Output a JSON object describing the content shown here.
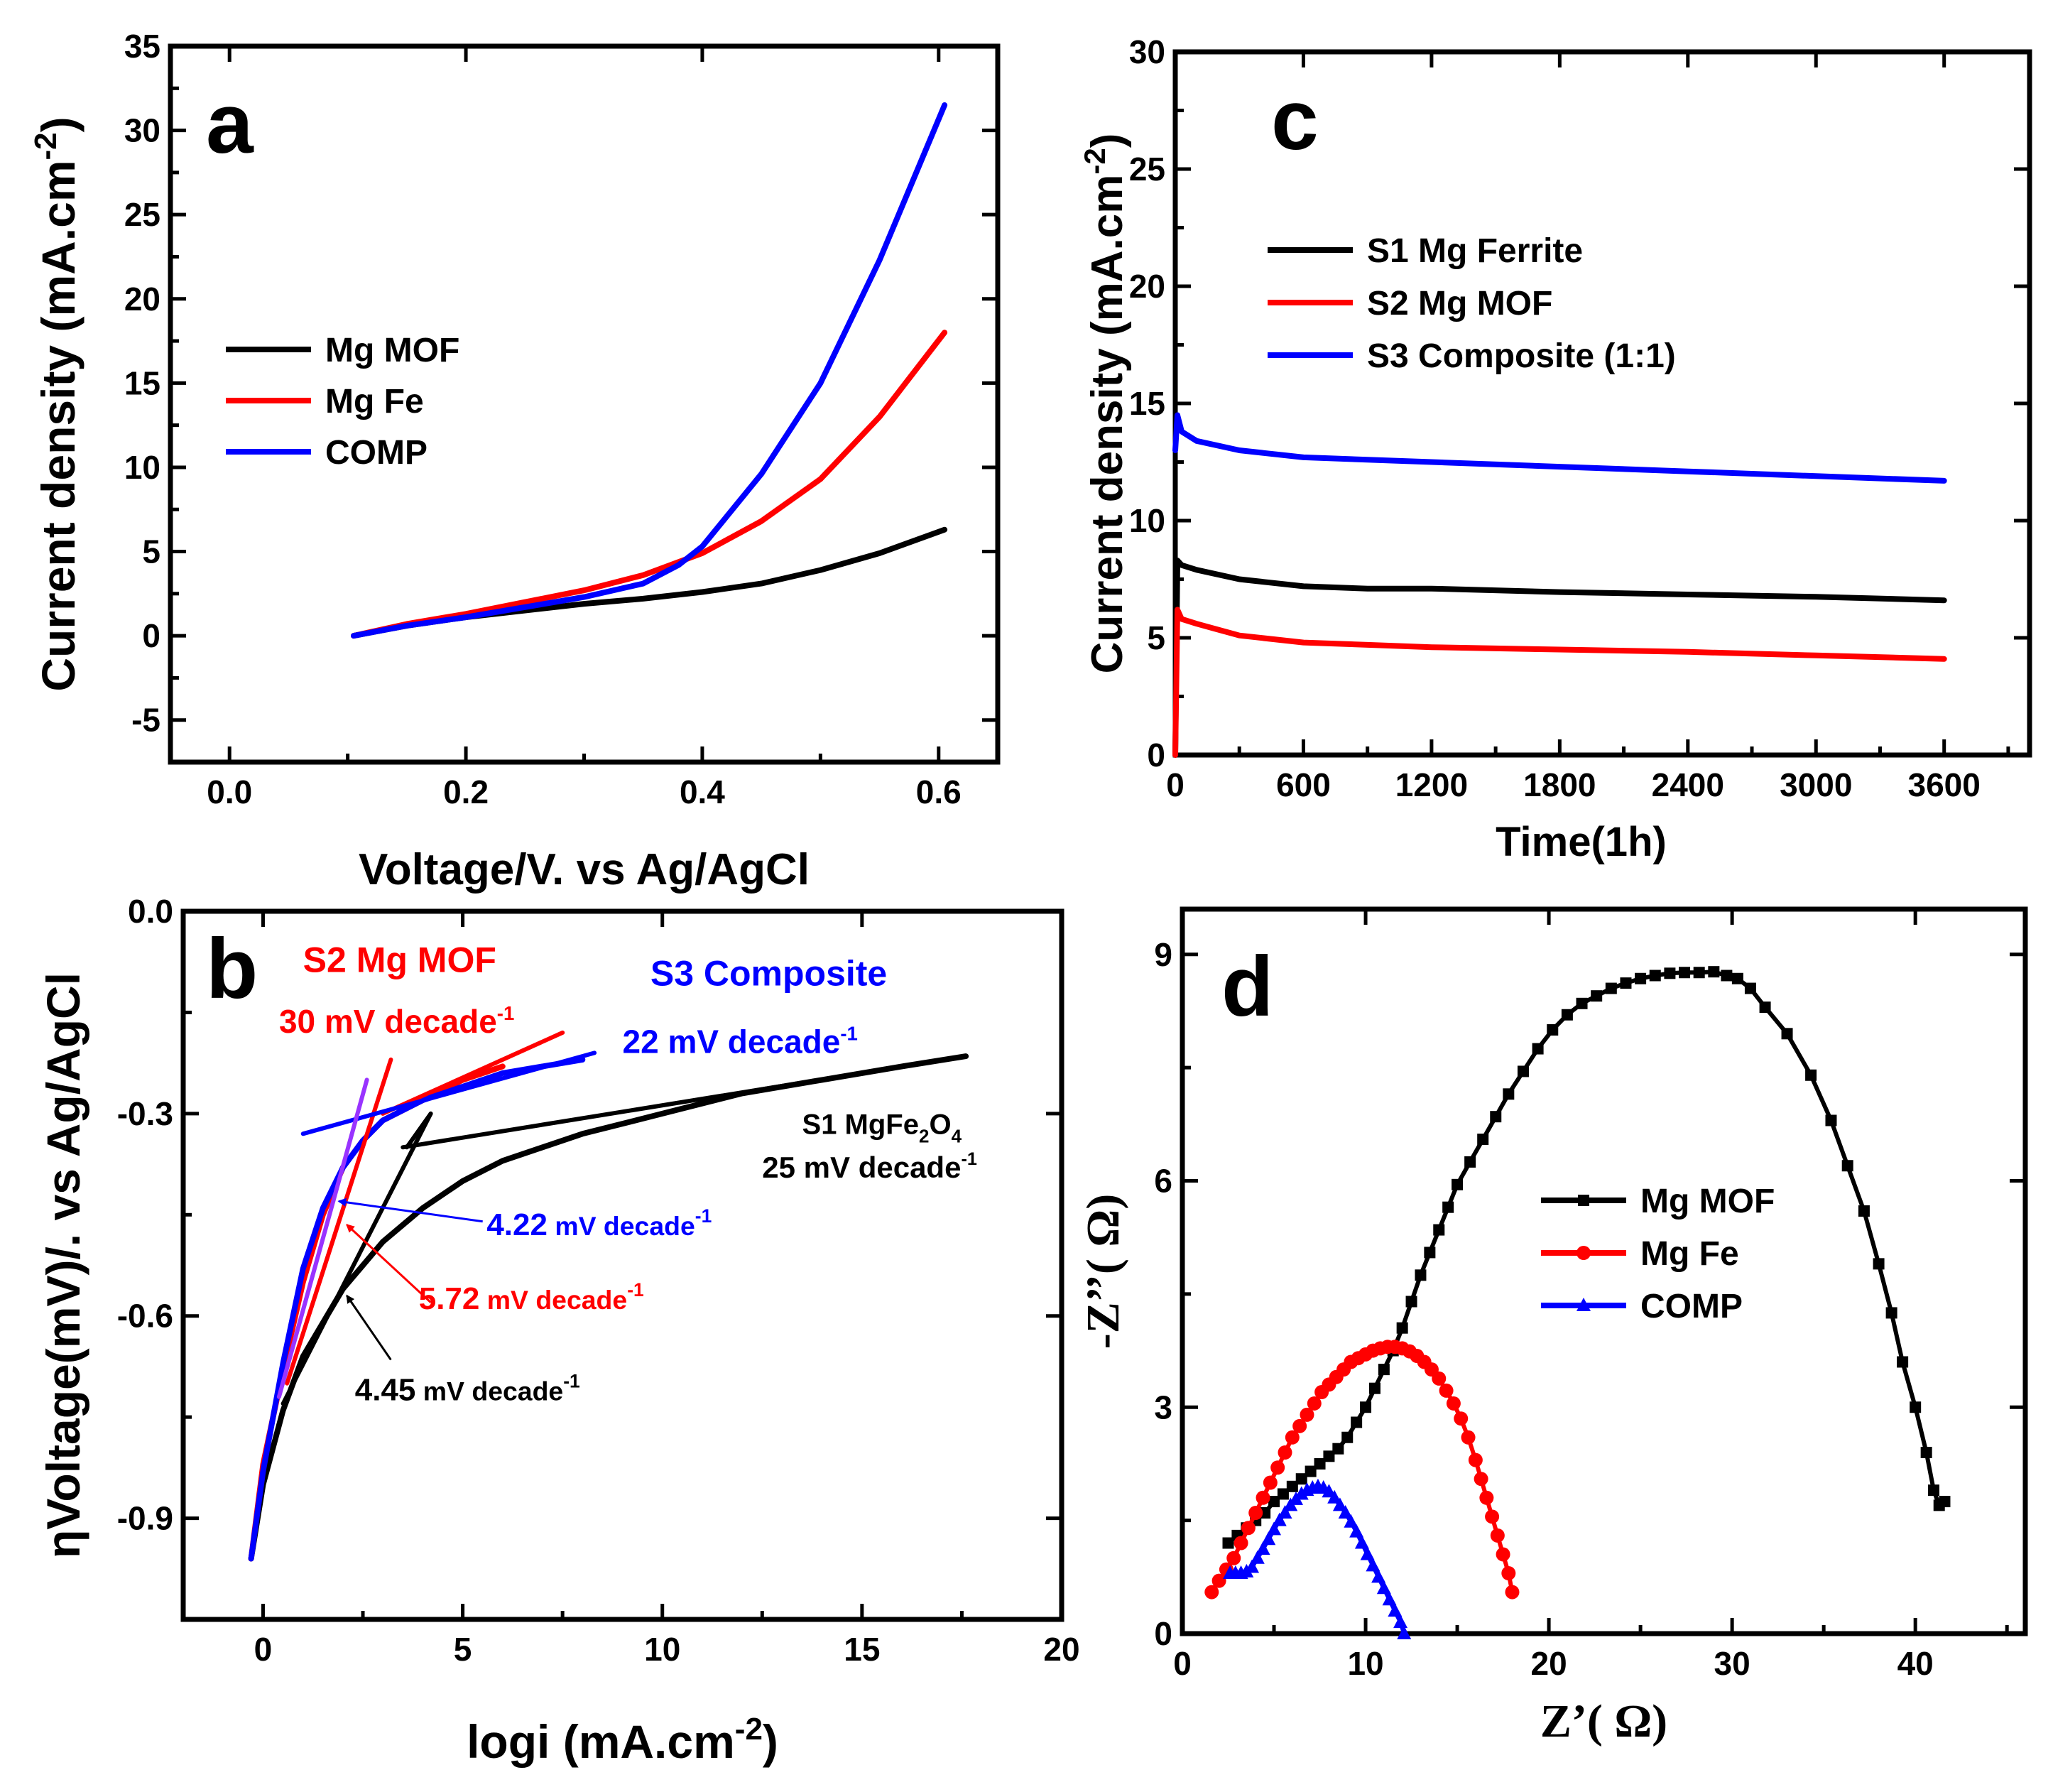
{
  "colors": {
    "black": "#000000",
    "red": "#ff0000",
    "blue": "#0000ff",
    "purple": "#9933ff"
  },
  "chart_data": [
    {
      "panel": "a",
      "type": "line",
      "xlabel": "Voltage/V. vs Ag/AgCl",
      "ylabel": "Current density (mA.cm",
      "ylabel_sup": "-2",
      "ylabel_end": ")",
      "xlim": [
        -0.05,
        0.65
      ],
      "ylim": [
        -7.5,
        35
      ],
      "xticks": [
        0.0,
        0.2,
        0.4,
        0.6
      ],
      "xticklabels": [
        "0.0",
        "0.2",
        "0.4",
        "0.6"
      ],
      "yticks": [
        -5,
        0,
        5,
        10,
        15,
        20,
        25,
        30,
        35
      ],
      "yticklabels": [
        "-5",
        "0",
        "5",
        "10",
        "15",
        "20",
        "25",
        "30",
        "35"
      ],
      "legend_position": "center-left",
      "series": [
        {
          "name": "Mg MOF",
          "color": "#000000",
          "x": [
            0.105,
            0.15,
            0.2,
            0.25,
            0.3,
            0.35,
            0.4,
            0.45,
            0.5,
            0.55,
            0.605
          ],
          "y": [
            0,
            0.6,
            1.1,
            1.5,
            1.9,
            2.2,
            2.6,
            3.1,
            3.9,
            4.9,
            6.3
          ]
        },
        {
          "name": "Mg Fe",
          "color": "#ff0000",
          "x": [
            0.105,
            0.15,
            0.2,
            0.25,
            0.3,
            0.35,
            0.4,
            0.45,
            0.5,
            0.55,
            0.605
          ],
          "y": [
            0,
            0.7,
            1.3,
            2.0,
            2.7,
            3.6,
            4.9,
            6.8,
            9.3,
            13.0,
            18.0
          ]
        },
        {
          "name": "COMP",
          "color": "#0000ff",
          "x": [
            0.105,
            0.15,
            0.2,
            0.25,
            0.3,
            0.35,
            0.38,
            0.4,
            0.45,
            0.5,
            0.55,
            0.605
          ],
          "y": [
            0,
            0.6,
            1.1,
            1.7,
            2.3,
            3.1,
            4.2,
            5.3,
            9.6,
            15.0,
            22.3,
            31.5
          ]
        }
      ]
    },
    {
      "panel": "b",
      "type": "line",
      "xlabel": "logi (mA.cm",
      "xlabel_sup": "-2",
      "xlabel_end": ")",
      "ylabel": "ηVoltage(mV)/. vs Ag/AgCl",
      "xlim": [
        -2,
        20
      ],
      "ylim": [
        -1.05,
        0
      ],
      "xticks": [
        0,
        5,
        10,
        15,
        20
      ],
      "xticklabels": [
        "0",
        "5",
        "10",
        "15",
        "20"
      ],
      "yticks": [
        0.0,
        -0.3,
        -0.6,
        -0.9
      ],
      "yticklabels": [
        "0.0",
        "-0.3",
        "-0.6",
        "-0.9"
      ],
      "series": [
        {
          "name": "S1",
          "color": "#000000",
          "x": [
            -0.3,
            0.0,
            0.5,
            1.0,
            2.0,
            3.0,
            4.0,
            5.0,
            6.0,
            8.0,
            10.0,
            12.0,
            14.0,
            16.0,
            17.6
          ],
          "y": [
            -0.96,
            -0.85,
            -0.74,
            -0.66,
            -0.56,
            -0.49,
            -0.44,
            -0.4,
            -0.37,
            -0.33,
            -0.3,
            -0.27,
            -0.25,
            -0.23,
            -0.215
          ]
        },
        {
          "name": "S2",
          "color": "#ff0000",
          "x": [
            -0.3,
            0.0,
            0.5,
            1.0,
            1.5,
            2.0,
            2.5,
            3.0,
            4.0,
            5.0,
            6.0
          ],
          "y": [
            -0.96,
            -0.82,
            -0.68,
            -0.55,
            -0.45,
            -0.38,
            -0.34,
            -0.31,
            -0.28,
            -0.25,
            -0.23
          ]
        },
        {
          "name": "S3",
          "color": "#0000ff",
          "x": [
            -0.3,
            0.0,
            0.5,
            1.0,
            1.5,
            2.0,
            2.5,
            3.0,
            4.0,
            5.0,
            6.0,
            7.0,
            8.0
          ],
          "y": [
            -0.96,
            -0.83,
            -0.67,
            -0.53,
            -0.44,
            -0.38,
            -0.34,
            -0.31,
            -0.28,
            -0.26,
            -0.24,
            -0.23,
            -0.22
          ]
        }
      ],
      "fit_lines": [
        {
          "color": "#000000",
          "x": [
            3.6,
            4.2
          ],
          "y": [
            -0.35,
            -0.3
          ]
        },
        {
          "color": "#000000",
          "x": [
            0.5,
            4.2
          ],
          "y": [
            -0.73,
            -0.3
          ]
        },
        {
          "color": "#000000",
          "x": [
            3.5,
            17.6
          ],
          "y": [
            -0.35,
            -0.215
          ]
        },
        {
          "color": "#ff0000",
          "x": [
            0.6,
            3.2
          ],
          "y": [
            -0.7,
            -0.22
          ]
        },
        {
          "color": "#ff0000",
          "x": [
            3.0,
            7.5
          ],
          "y": [
            -0.3,
            -0.18
          ]
        },
        {
          "color": "#0000ff",
          "x": [
            1.0,
            8.3
          ],
          "y": [
            -0.33,
            -0.21
          ]
        },
        {
          "color": "#9933ff",
          "x": [
            0.4,
            2.6
          ],
          "y": [
            -0.72,
            -0.25
          ]
        }
      ],
      "annotations": [
        {
          "text": "S2 Mg MOF",
          "color": "#ff0000",
          "size": 50,
          "x": 1.0,
          "y": -0.09
        },
        {
          "text": "30 mV decade",
          "sup": "-1",
          "color": "#ff0000",
          "size": 46,
          "x": 0.4,
          "y": -0.18
        },
        {
          "text": "S3 Composite",
          "color": "#0000ff",
          "size": 50,
          "x": 9.7,
          "y": -0.11
        },
        {
          "text": "22 mV decade",
          "sup": "-1",
          "color": "#0000ff",
          "size": 46,
          "x": 9.0,
          "y": -0.21
        },
        {
          "text": "S1 MgFe",
          "sub1": "2",
          "mid": "O",
          "sub2": "4",
          "color": "#000000",
          "size": 40,
          "x": 13.5,
          "y": -0.33
        },
        {
          "text": "25 mV decade",
          "sup": "-1",
          "color": "#000000",
          "size": 42,
          "x": 12.5,
          "y": -0.395
        },
        {
          "text": "4.22",
          "rest": " mV decade",
          "sup": "-1",
          "color": "#0000ff",
          "size": 44,
          "x": 5.6,
          "y": -0.48
        },
        {
          "text": "5.72",
          "rest": " mV decade",
          "sup": "-1",
          "color": "#ff0000",
          "size": 44,
          "x": 3.9,
          "y": -0.59
        },
        {
          "text": "4.45",
          "rest": " mV decade",
          "sup": "-1",
          "color": "#000000",
          "size": 44,
          "x": 2.3,
          "y": -0.725
        }
      ],
      "arrows": [
        {
          "color": "#0000ff",
          "x": [
            5.5,
            1.9
          ],
          "y": [
            -0.46,
            -0.43
          ]
        },
        {
          "color": "#ff0000",
          "x": [
            4.2,
            2.1
          ],
          "y": [
            -0.58,
            -0.465
          ]
        },
        {
          "color": "#000000",
          "x": [
            3.2,
            2.1
          ],
          "y": [
            -0.665,
            -0.57
          ]
        }
      ]
    },
    {
      "panel": "c",
      "type": "line",
      "xlabel": "Time(1h)",
      "ylabel": "Current density (mA.cm",
      "ylabel_sup": "-2",
      "ylabel_end": ")",
      "xlim": [
        0,
        4000
      ],
      "ylim": [
        0,
        30
      ],
      "xticks": [
        0,
        600,
        1200,
        1800,
        2400,
        3000,
        3600
      ],
      "xticklabels": [
        "0",
        "600",
        "1200",
        "1800",
        "2400",
        "3000",
        "3600"
      ],
      "yticks": [
        0,
        5,
        10,
        15,
        20,
        25,
        30
      ],
      "yticklabels": [
        "0",
        "5",
        "10",
        "15",
        "20",
        "25",
        "30"
      ],
      "legend_position": "upper-left",
      "series": [
        {
          "name": "S1 Mg Ferrite",
          "color": "#000000",
          "x": [
            0,
            10,
            30,
            100,
            300,
            600,
            900,
            1200,
            1800,
            2400,
            3000,
            3600
          ],
          "y": [
            0,
            8.3,
            8.1,
            7.9,
            7.5,
            7.2,
            7.1,
            7.1,
            6.95,
            6.85,
            6.75,
            6.6
          ]
        },
        {
          "name": "S2 Mg MOF",
          "color": "#ff0000",
          "x": [
            0,
            10,
            30,
            100,
            300,
            600,
            900,
            1200,
            1800,
            2400,
            3000,
            3600
          ],
          "y": [
            0,
            6.2,
            5.8,
            5.6,
            5.1,
            4.8,
            4.7,
            4.6,
            4.5,
            4.4,
            4.25,
            4.1
          ]
        },
        {
          "name": "S3 Composite (1:1)",
          "color": "#0000ff",
          "x": [
            0,
            10,
            30,
            100,
            300,
            600,
            900,
            1200,
            1800,
            2400,
            3000,
            3600
          ],
          "y": [
            13.0,
            14.5,
            13.8,
            13.4,
            13.0,
            12.7,
            12.6,
            12.5,
            12.3,
            12.1,
            11.9,
            11.7
          ]
        }
      ]
    },
    {
      "panel": "d",
      "type": "line",
      "xlabel": "Z’( Ω)",
      "ylabel": "-Z’’( Ω)",
      "xlim": [
        0,
        46
      ],
      "ylim": [
        0,
        9.6
      ],
      "xticks": [
        0,
        10,
        20,
        30,
        40
      ],
      "xticklabels": [
        "0",
        "10",
        "20",
        "30",
        "40"
      ],
      "yticks": [
        0,
        3,
        6,
        9
      ],
      "yticklabels": [
        "0",
        "3",
        "6",
        "9"
      ],
      "legend_position": "center",
      "series": [
        {
          "name": "Mg MOF",
          "color": "#000000",
          "marker": "square",
          "x": [
            2.5,
            3.0,
            3.5,
            4.0,
            4.5,
            5.0,
            5.5,
            6.0,
            6.5,
            7.0,
            7.5,
            8.0,
            8.5,
            9.0,
            9.5,
            10.0,
            10.5,
            11.0,
            11.5,
            12.0,
            12.5,
            13.0,
            13.5,
            14.0,
            14.5,
            15.0,
            15.7,
            16.4,
            17.1,
            17.8,
            18.6,
            19.4,
            20.2,
            21.0,
            21.8,
            22.6,
            23.4,
            24.2,
            25.0,
            25.8,
            26.6,
            27.4,
            28.2,
            29.0,
            29.7,
            30.3,
            31.0,
            31.8,
            33.0,
            34.3,
            35.4,
            36.3,
            37.2,
            38.0,
            38.7,
            39.3,
            40.0,
            40.6,
            41.0,
            41.3,
            41.6
          ],
          "y": [
            1.2,
            1.3,
            1.4,
            1.5,
            1.6,
            1.75,
            1.85,
            1.95,
            2.05,
            2.15,
            2.25,
            2.35,
            2.45,
            2.6,
            2.8,
            3.0,
            3.25,
            3.5,
            3.75,
            4.05,
            4.4,
            4.75,
            5.05,
            5.35,
            5.65,
            5.95,
            6.25,
            6.55,
            6.85,
            7.15,
            7.45,
            7.75,
            8.0,
            8.2,
            8.35,
            8.45,
            8.55,
            8.62,
            8.68,
            8.72,
            8.75,
            8.76,
            8.76,
            8.77,
            8.72,
            8.68,
            8.55,
            8.3,
            7.95,
            7.4,
            6.8,
            6.2,
            5.6,
            4.9,
            4.25,
            3.6,
            3.0,
            2.4,
            1.9,
            1.7,
            1.75
          ]
        },
        {
          "name": "Mg Fe",
          "color": "#ff0000",
          "marker": "circle",
          "x": [
            1.6,
            2.0,
            2.4,
            2.8,
            3.2,
            3.6,
            4.0,
            4.4,
            4.8,
            5.2,
            5.6,
            6.0,
            6.4,
            6.8,
            7.2,
            7.6,
            8.0,
            8.4,
            8.8,
            9.2,
            9.6,
            10.0,
            10.4,
            10.8,
            11.2,
            11.6,
            12.0,
            12.4,
            12.8,
            13.2,
            13.6,
            14.0,
            14.4,
            14.8,
            15.2,
            15.6,
            16.0,
            16.3,
            16.6,
            16.9,
            17.2,
            17.5,
            17.8,
            18.0
          ],
          "y": [
            0.55,
            0.7,
            0.85,
            1.0,
            1.2,
            1.4,
            1.6,
            1.8,
            2.0,
            2.2,
            2.4,
            2.6,
            2.75,
            2.9,
            3.05,
            3.2,
            3.3,
            3.4,
            3.5,
            3.6,
            3.65,
            3.7,
            3.75,
            3.78,
            3.8,
            3.8,
            3.78,
            3.74,
            3.68,
            3.6,
            3.5,
            3.38,
            3.22,
            3.05,
            2.85,
            2.6,
            2.3,
            2.05,
            1.8,
            1.55,
            1.3,
            1.05,
            0.8,
            0.55
          ]
        },
        {
          "name": "COMP",
          "color": "#0000ff",
          "marker": "triangle",
          "x": [
            2.6,
            2.9,
            3.2,
            3.5,
            3.8,
            4.1,
            4.4,
            4.7,
            5.0,
            5.3,
            5.6,
            5.9,
            6.2,
            6.5,
            6.8,
            7.1,
            7.4,
            7.7,
            8.0,
            8.3,
            8.6,
            8.9,
            9.2,
            9.5,
            9.8,
            10.1,
            10.4,
            10.7,
            11.0,
            11.3,
            11.6,
            11.9,
            12.1
          ],
          "y": [
            0.8,
            0.8,
            0.8,
            0.82,
            0.88,
            1.0,
            1.12,
            1.25,
            1.38,
            1.5,
            1.6,
            1.7,
            1.78,
            1.85,
            1.9,
            1.93,
            1.95,
            1.93,
            1.88,
            1.8,
            1.7,
            1.6,
            1.48,
            1.35,
            1.2,
            1.05,
            0.9,
            0.75,
            0.6,
            0.45,
            0.3,
            0.15,
            0.0
          ]
        }
      ]
    }
  ]
}
